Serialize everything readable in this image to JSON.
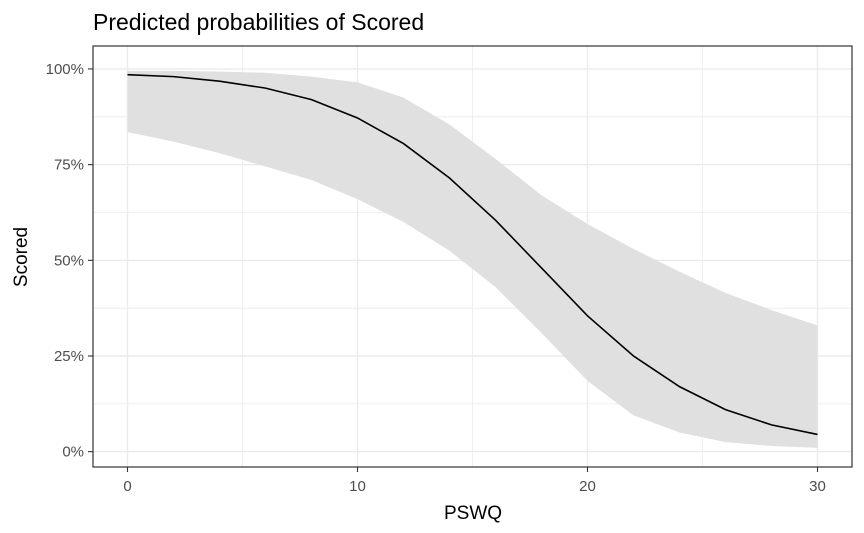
{
  "chart_data": {
    "type": "line",
    "title": "Predicted probabilities of Scored",
    "xlabel": "PSWQ",
    "ylabel": "Scored",
    "xlim": [
      -1.5,
      31.5
    ],
    "ylim": [
      -0.04,
      1.06
    ],
    "x_ticks": [
      0,
      10,
      20,
      30
    ],
    "x_tick_labels": [
      "0",
      "10",
      "20",
      "30"
    ],
    "y_ticks": [
      0,
      0.25,
      0.5,
      0.75,
      1.0
    ],
    "y_tick_labels": [
      "0%",
      "25%",
      "50%",
      "75%",
      "100%"
    ],
    "grid": true,
    "legend": "none",
    "series": [
      {
        "x": [
          0,
          2,
          4,
          6,
          8,
          10,
          12,
          14,
          16,
          18,
          20,
          22,
          24,
          26,
          28,
          30
        ],
        "values": [
          0.985,
          0.98,
          0.968,
          0.95,
          0.92,
          0.872,
          0.805,
          0.715,
          0.605,
          0.48,
          0.355,
          0.25,
          0.17,
          0.11,
          0.07,
          0.045
        ],
        "lower": [
          0.835,
          0.81,
          0.78,
          0.745,
          0.71,
          0.66,
          0.6,
          0.525,
          0.43,
          0.31,
          0.185,
          0.095,
          0.05,
          0.025,
          0.015,
          0.01
        ],
        "upper": [
          0.995,
          0.995,
          0.993,
          0.99,
          0.98,
          0.965,
          0.925,
          0.855,
          0.765,
          0.67,
          0.595,
          0.53,
          0.47,
          0.415,
          0.37,
          0.33
        ]
      }
    ],
    "colors": {
      "line": "#000000",
      "ribbon": "#e0e0e0",
      "grid": "#ebebeb",
      "panel_border": "#333333"
    }
  }
}
